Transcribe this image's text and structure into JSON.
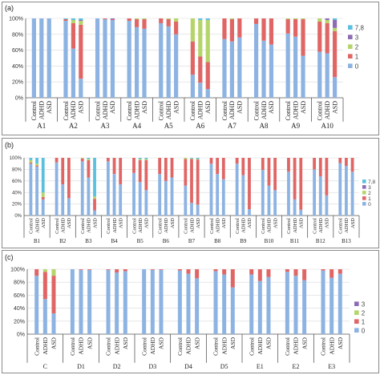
{
  "chart_data": [
    {
      "panel": "(a)",
      "type": "bar",
      "stacked": true,
      "ylim": [
        0,
        100
      ],
      "yticks": [
        "0%",
        "20%",
        "40%",
        "60%",
        "80%",
        "100%"
      ],
      "categories": [
        "Control",
        "ADHD",
        "ASD"
      ],
      "legend": [
        "7,8",
        "3",
        "2",
        "1",
        "0"
      ],
      "legend_position": "right",
      "stack_order": [
        "0",
        "1",
        "2",
        "3",
        "7,8"
      ],
      "colors": {
        "0": "#8db3e2",
        "1": "#e06666",
        "2": "#b5d56a",
        "3": "#8e6bb5",
        "7,8": "#5bc0de"
      },
      "groups": [
        {
          "name": "A1",
          "bars": [
            [
              100,
              0,
              0,
              0,
              0
            ],
            [
              100,
              0,
              0,
              0,
              0
            ],
            [
              100,
              0,
              0,
              0,
              0
            ]
          ]
        },
        {
          "name": "A2",
          "bars": [
            [
              97,
              2,
              0,
              0,
              1
            ],
            [
              62,
              32,
              4,
              0,
              2
            ],
            [
              24,
              68,
              5,
              1,
              2
            ]
          ]
        },
        {
          "name": "A3",
          "bars": [
            [
              100,
              0,
              0,
              0,
              0
            ],
            [
              99,
              1,
              0,
              0,
              0
            ],
            [
              98,
              1,
              0,
              1,
              0
            ]
          ]
        },
        {
          "name": "A4",
          "bars": [
            [
              97,
              3,
              0,
              0,
              0
            ],
            [
              89,
              10,
              1,
              0,
              0
            ],
            [
              87,
              12,
              1,
              0,
              0
            ]
          ]
        },
        {
          "name": "A5",
          "bars": [
            [
              94,
              6,
              0,
              0,
              0
            ],
            [
              90,
              9,
              1,
              0,
              0
            ],
            [
              80,
              16,
              4,
              0,
              0
            ]
          ]
        },
        {
          "name": "A6",
          "bars": [
            [
              29,
              42,
              29,
              0,
              0
            ],
            [
              19,
              33,
              46,
              0,
              2
            ],
            [
              11,
              34,
              53,
              0,
              2
            ]
          ]
        },
        {
          "name": "A7",
          "bars": [
            [
              74,
              26,
              0,
              0,
              0
            ],
            [
              71,
              28,
              1,
              0,
              0
            ],
            [
              76,
              24,
              0,
              0,
              0
            ]
          ]
        },
        {
          "name": "A8",
          "bars": [
            [
              93,
              7,
              0,
              0,
              0
            ],
            [
              72,
              28,
              0,
              0,
              0
            ],
            [
              67,
              33,
              0,
              0,
              0
            ]
          ]
        },
        {
          "name": "A9",
          "bars": [
            [
              81,
              18,
              1,
              0,
              0
            ],
            [
              77,
              22,
              1,
              0,
              0
            ],
            [
              53,
              46,
              1,
              0,
              0
            ]
          ]
        },
        {
          "name": "A10",
          "bars": [
            [
              58,
              38,
              4,
              0,
              0
            ],
            [
              56,
              38,
              4,
              2,
              0
            ],
            [
              26,
              58,
              4,
              10,
              2
            ]
          ]
        }
      ]
    },
    {
      "panel": "(b)",
      "type": "bar",
      "stacked": true,
      "ylim": [
        0,
        100
      ],
      "yticks": [
        "0%",
        "20%",
        "40%",
        "60%",
        "80%",
        "100%"
      ],
      "categories": [
        "Control",
        "ADHD",
        "ASD"
      ],
      "legend": [
        "7,8",
        "3",
        "2",
        "1",
        "0"
      ],
      "legend_position": "right",
      "stack_order": [
        "0",
        "1",
        "2",
        "3",
        "7,8"
      ],
      "colors": {
        "0": "#8db3e2",
        "1": "#e06666",
        "2": "#b5d56a",
        "3": "#8e6bb5",
        "7,8": "#5bc0de"
      },
      "groups": [
        {
          "name": "B1",
          "bars": [
            [
              90,
              2,
              4,
              0,
              4
            ],
            [
              85,
              2,
              3,
              0,
              10
            ],
            [
              28,
              4,
              8,
              0,
              60
            ]
          ]
        },
        {
          "name": "B2",
          "bars": [
            [
              92,
              8,
              0,
              0,
              0
            ],
            [
              54,
              46,
              0,
              0,
              0
            ],
            [
              30,
              70,
              0,
              0,
              0
            ]
          ]
        },
        {
          "name": "B3",
          "bars": [
            [
              94,
              5,
              1,
              0,
              0
            ],
            [
              66,
              30,
              2,
              0,
              2
            ],
            [
              9,
              20,
              4,
              0,
              67
            ]
          ]
        },
        {
          "name": "B4",
          "bars": [
            [
              94,
              6,
              0,
              0,
              0
            ],
            [
              72,
              28,
              0,
              0,
              0
            ],
            [
              54,
              46,
              0,
              0,
              0
            ]
          ]
        },
        {
          "name": "B5",
          "bars": [
            [
              74,
              26,
              0,
              0,
              0
            ],
            [
              58,
              38,
              2,
              0,
              2
            ],
            [
              44,
              52,
              2,
              0,
              2
            ]
          ]
        },
        {
          "name": "B6",
          "bars": [
            [
              72,
              28,
              0,
              0,
              0
            ],
            [
              60,
              40,
              0,
              0,
              0
            ],
            [
              66,
              34,
              0,
              0,
              0
            ]
          ]
        },
        {
          "name": "B7",
          "bars": [
            [
              52,
              46,
              2,
              0,
              0
            ],
            [
              22,
              76,
              1,
              0,
              1
            ],
            [
              19,
              78,
              1,
              0,
              2
            ]
          ]
        },
        {
          "name": "B8",
          "bars": [
            [
              90,
              10,
              0,
              0,
              0
            ],
            [
              72,
              28,
              0,
              0,
              0
            ],
            [
              63,
              37,
              0,
              0,
              0
            ]
          ]
        },
        {
          "name": "B9",
          "bars": [
            [
              90,
              10,
              0,
              0,
              0
            ],
            [
              70,
              30,
              0,
              0,
              0
            ],
            [
              11,
              89,
              0,
              0,
              0
            ]
          ]
        },
        {
          "name": "B10",
          "bars": [
            [
              79,
              21,
              0,
              0,
              0
            ],
            [
              52,
              48,
              0,
              0,
              0
            ],
            [
              44,
              56,
              0,
              0,
              0
            ]
          ]
        },
        {
          "name": "B11",
          "bars": [
            [
              76,
              24,
              0,
              0,
              0
            ],
            [
              28,
              72,
              0,
              0,
              0
            ],
            [
              10,
              90,
              0,
              0,
              0
            ]
          ]
        },
        {
          "name": "B12",
          "bars": [
            [
              80,
              20,
              0,
              0,
              0
            ],
            [
              68,
              32,
              0,
              0,
              0
            ],
            [
              35,
              65,
              0,
              0,
              0
            ]
          ]
        },
        {
          "name": "B13",
          "bars": [
            [
              91,
              9,
              0,
              0,
              0
            ],
            [
              86,
              14,
              0,
              0,
              0
            ],
            [
              76,
              24,
              0,
              0,
              0
            ]
          ]
        }
      ]
    },
    {
      "panel": "(c)",
      "type": "bar",
      "stacked": true,
      "ylim": [
        0,
        100
      ],
      "yticks": [
        "0%",
        "20%",
        "40%",
        "60%",
        "80%",
        "100%"
      ],
      "categories": [
        "Control",
        "ADHD",
        "ASD"
      ],
      "legend": [
        "3",
        "2",
        "1",
        "0"
      ],
      "legend_position": "right",
      "stack_order": [
        "0",
        "1",
        "2",
        "3"
      ],
      "colors": {
        "0": "#8db3e2",
        "1": "#e06666",
        "2": "#b5d56a",
        "3": "#8e6bb5"
      },
      "groups": [
        {
          "name": "C",
          "bars": [
            [
              90,
              10,
              0,
              0
            ],
            [
              54,
              42,
              4,
              0
            ],
            [
              32,
              58,
              10,
              0
            ]
          ]
        },
        {
          "name": "D1",
          "bars": [
            [
              100,
              0,
              0,
              0
            ],
            [
              99,
              1,
              0,
              0
            ],
            [
              99,
              1,
              0,
              0
            ]
          ]
        },
        {
          "name": "D2",
          "bars": [
            [
              99,
              1,
              0,
              0
            ],
            [
              95,
              5,
              0,
              0
            ],
            [
              97,
              3,
              0,
              0
            ]
          ]
        },
        {
          "name": "D3",
          "bars": [
            [
              100,
              0,
              0,
              0
            ],
            [
              99,
              1,
              0,
              0
            ],
            [
              99,
              1,
              0,
              0
            ]
          ]
        },
        {
          "name": "D4",
          "bars": [
            [
              98,
              2,
              0,
              0
            ],
            [
              93,
              7,
              0,
              0
            ],
            [
              86,
              14,
              0,
              0
            ]
          ]
        },
        {
          "name": "D5",
          "bars": [
            [
              97,
              3,
              0,
              0
            ],
            [
              92,
              8,
              0,
              0
            ],
            [
              72,
              28,
              0,
              0
            ]
          ]
        },
        {
          "name": "E1",
          "bars": [
            [
              92,
              8,
              0,
              0
            ],
            [
              82,
              18,
              0,
              0
            ],
            [
              88,
              12,
              0,
              0
            ]
          ]
        },
        {
          "name": "E2",
          "bars": [
            [
              96,
              4,
              0,
              0
            ],
            [
              90,
              10,
              0,
              0
            ],
            [
              83,
              17,
              0,
              0
            ]
          ]
        },
        {
          "name": "E3",
          "bars": [
            [
              98,
              2,
              0,
              0
            ],
            [
              87,
              13,
              0,
              0
            ],
            [
              93,
              7,
              0,
              0
            ]
          ]
        }
      ]
    }
  ]
}
